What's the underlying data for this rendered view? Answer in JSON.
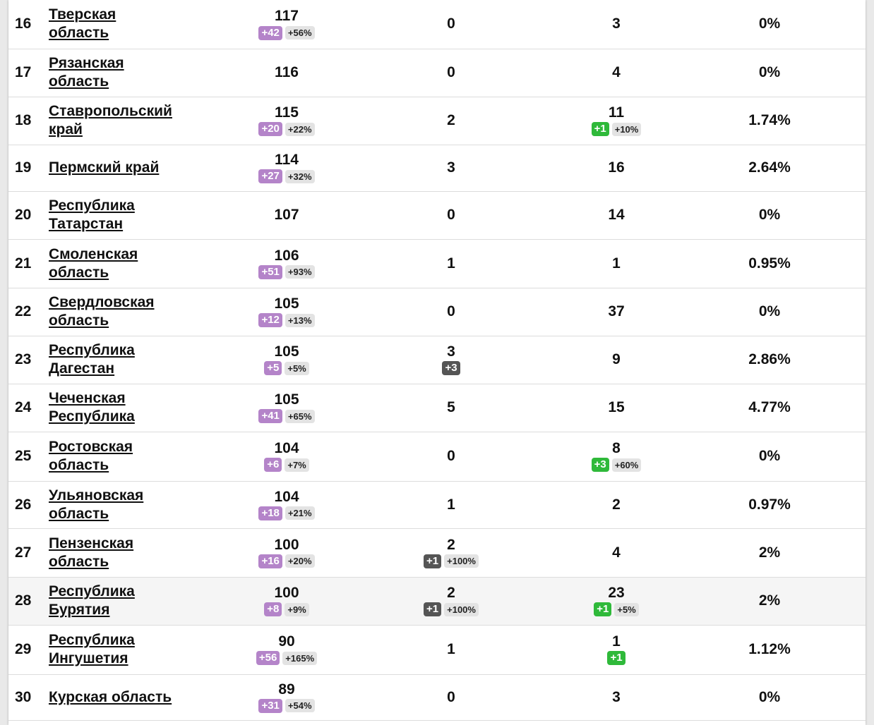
{
  "rows": [
    {
      "rank": "16",
      "region": [
        "Тверская",
        "область"
      ],
      "cases": "117",
      "cases_delta": "+42",
      "cases_pct": "+56%",
      "deaths": "0",
      "deaths_delta": "",
      "deaths_pct": "",
      "recovered": "3",
      "recovered_delta": "",
      "recovered_pct": "",
      "rate": "0%",
      "h": 69
    },
    {
      "rank": "17",
      "region": [
        "Рязанская",
        "область"
      ],
      "cases": "116",
      "cases_delta": "",
      "cases_pct": "",
      "deaths": "0",
      "deaths_delta": "",
      "deaths_pct": "",
      "recovered": "4",
      "recovered_delta": "",
      "recovered_pct": "",
      "rate": "0%",
      "h": 68
    },
    {
      "rank": "18",
      "region": [
        "Ставропольский",
        "край"
      ],
      "cases": "115",
      "cases_delta": "+20",
      "cases_pct": "+22%",
      "deaths": "2",
      "deaths_delta": "",
      "deaths_pct": "",
      "recovered": "11",
      "recovered_delta": "+1",
      "recovered_pct": "+10%",
      "rate": "1.74%",
      "h": 68
    },
    {
      "rank": "19",
      "region": [
        "Пермский край"
      ],
      "cases": "114",
      "cases_delta": "+27",
      "cases_pct": "+32%",
      "deaths": "3",
      "deaths_delta": "",
      "deaths_pct": "",
      "recovered": "16",
      "recovered_delta": "",
      "recovered_pct": "",
      "rate": "2.64%",
      "h": 66
    },
    {
      "rank": "20",
      "region": [
        "Республика",
        "Татарстан"
      ],
      "cases": "107",
      "cases_delta": "",
      "cases_pct": "",
      "deaths": "0",
      "deaths_delta": "",
      "deaths_pct": "",
      "recovered": "14",
      "recovered_delta": "",
      "recovered_pct": "",
      "rate": "0%",
      "h": 68
    },
    {
      "rank": "21",
      "region": [
        "Смоленская",
        "область"
      ],
      "cases": "106",
      "cases_delta": "+51",
      "cases_pct": "+93%",
      "deaths": "1",
      "deaths_delta": "",
      "deaths_pct": "",
      "recovered": "1",
      "recovered_delta": "",
      "recovered_pct": "",
      "rate": "0.95%",
      "h": 69
    },
    {
      "rank": "22",
      "region": [
        "Свердловская",
        "область"
      ],
      "cases": "105",
      "cases_delta": "+12",
      "cases_pct": "+13%",
      "deaths": "0",
      "deaths_delta": "",
      "deaths_pct": "",
      "recovered": "37",
      "recovered_delta": "",
      "recovered_pct": "",
      "rate": "0%",
      "h": 68
    },
    {
      "rank": "23",
      "region": [
        "Республика",
        "Дагестан"
      ],
      "cases": "105",
      "cases_delta": "+5",
      "cases_pct": "+5%",
      "deaths": "3",
      "deaths_delta": "+3",
      "deaths_pct": "",
      "recovered": "9",
      "recovered_delta": "",
      "recovered_pct": "",
      "rate": "2.86%",
      "h": 68
    },
    {
      "rank": "24",
      "region": [
        "Чеченская",
        "Республика"
      ],
      "cases": "105",
      "cases_delta": "+41",
      "cases_pct": "+65%",
      "deaths": "5",
      "deaths_delta": "",
      "deaths_pct": "",
      "recovered": "15",
      "recovered_delta": "",
      "recovered_pct": "",
      "rate": "4.77%",
      "h": 68
    },
    {
      "rank": "25",
      "region": [
        "Ростовская",
        "область"
      ],
      "cases": "104",
      "cases_delta": "+6",
      "cases_pct": "+7%",
      "deaths": "0",
      "deaths_delta": "",
      "deaths_pct": "",
      "recovered": "8",
      "recovered_delta": "+3",
      "recovered_pct": "+60%",
      "rate": "0%",
      "h": 70
    },
    {
      "rank": "26",
      "region": [
        "Ульяновская",
        "область"
      ],
      "cases": "104",
      "cases_delta": "+18",
      "cases_pct": "+21%",
      "deaths": "1",
      "deaths_delta": "",
      "deaths_pct": "",
      "recovered": "2",
      "recovered_delta": "",
      "recovered_pct": "",
      "rate": "0.97%",
      "h": 67
    },
    {
      "rank": "27",
      "region": [
        "Пензенская",
        "область"
      ],
      "cases": "100",
      "cases_delta": "+16",
      "cases_pct": "+20%",
      "deaths": "2",
      "deaths_delta": "+1",
      "deaths_pct": "+100%",
      "recovered": "4",
      "recovered_delta": "",
      "recovered_pct": "",
      "rate": "2%",
      "h": 69
    },
    {
      "rank": "28",
      "region": [
        "Республика",
        "Бурятия"
      ],
      "cases": "100",
      "cases_delta": "+8",
      "cases_pct": "+9%",
      "deaths": "2",
      "deaths_delta": "+1",
      "deaths_pct": "+100%",
      "recovered": "23",
      "recovered_delta": "+1",
      "recovered_pct": "+5%",
      "rate": "2%",
      "h": 68,
      "highlight": true
    },
    {
      "rank": "29",
      "region": [
        "Республика",
        "Ингушетия"
      ],
      "cases": "90",
      "cases_delta": "+56",
      "cases_pct": "+165%",
      "deaths": "1",
      "deaths_delta": "",
      "deaths_pct": "",
      "recovered": "1",
      "recovered_delta": "+1",
      "recovered_pct": "",
      "rate": "1.12%",
      "h": 70
    },
    {
      "rank": "30",
      "region": [
        "Курская область"
      ],
      "cases": "89",
      "cases_delta": "+31",
      "cases_pct": "+54%",
      "deaths": "0",
      "deaths_delta": "",
      "deaths_pct": "",
      "recovered": "3",
      "recovered_delta": "",
      "recovered_pct": "",
      "rate": "0%",
      "h": 65
    }
  ],
  "colors": {
    "cases_delta": "#b484c9",
    "recovered_delta": "#2fb93a",
    "deaths_delta": "#555555",
    "pct_bg": "#e3e3e3"
  }
}
